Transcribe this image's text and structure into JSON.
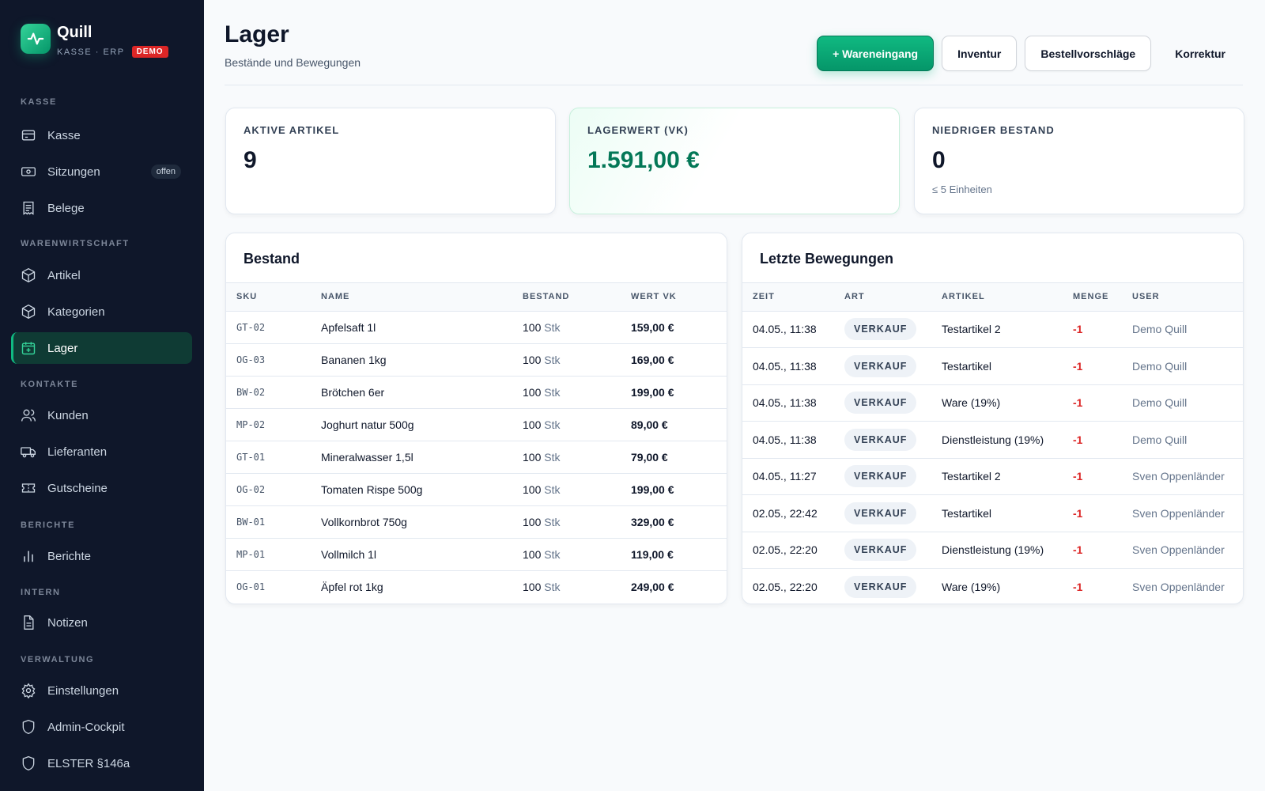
{
  "brand": {
    "name": "Quill",
    "subtitle": "KASSE · ERP",
    "badge": "DEMO"
  },
  "sidebar": {
    "sections": [
      {
        "title": "KASSE",
        "items": [
          {
            "label": "Kasse",
            "icon": "cash-register-icon"
          },
          {
            "label": "Sitzungen",
            "icon": "banknote-icon",
            "badge": "offen"
          },
          {
            "label": "Belege",
            "icon": "receipt-icon"
          }
        ]
      },
      {
        "title": "WARENWIRTSCHAFT",
        "items": [
          {
            "label": "Artikel",
            "icon": "box-icon"
          },
          {
            "label": "Kategorien",
            "icon": "box-icon"
          },
          {
            "label": "Lager",
            "icon": "warehouse-icon",
            "active": true
          }
        ]
      },
      {
        "title": "KONTAKTE",
        "items": [
          {
            "label": "Kunden",
            "icon": "users-icon"
          },
          {
            "label": "Lieferanten",
            "icon": "truck-icon"
          },
          {
            "label": "Gutscheine",
            "icon": "ticket-icon"
          }
        ]
      },
      {
        "title": "BERICHTE",
        "items": [
          {
            "label": "Berichte",
            "icon": "bar-chart-icon"
          }
        ]
      },
      {
        "title": "INTERN",
        "items": [
          {
            "label": "Notizen",
            "icon": "document-icon"
          }
        ]
      },
      {
        "title": "VERWALTUNG",
        "items": [
          {
            "label": "Einstellungen",
            "icon": "gear-icon"
          },
          {
            "label": "Admin-Cockpit",
            "icon": "shield-icon"
          },
          {
            "label": "ELSTER §146a",
            "icon": "shield-icon"
          }
        ]
      }
    ]
  },
  "header": {
    "title": "Lager",
    "subtitle": "Bestände und Bewegungen",
    "actions": {
      "primary": "+ Wareneingang",
      "inventur": "Inventur",
      "bestellvorschlaege": "Bestellvorschläge",
      "korrektur": "Korrektur"
    }
  },
  "stats": {
    "active": {
      "label": "AKTIVE ARTIKEL",
      "value": "9"
    },
    "stock_value": {
      "label": "LAGERWERT (VK)",
      "value": "1.591,00 €"
    },
    "low_stock": {
      "label": "NIEDRIGER BESTAND",
      "value": "0",
      "note": "≤ 5 Einheiten"
    }
  },
  "stock": {
    "title": "Bestand",
    "columns": [
      "SKU",
      "NAME",
      "BESTAND",
      "WERT VK"
    ],
    "rows": [
      {
        "sku": "GT-02",
        "name": "Apfelsaft 1l",
        "qty": "100",
        "unit": "Stk",
        "value": "159,00 €"
      },
      {
        "sku": "OG-03",
        "name": "Bananen 1kg",
        "qty": "100",
        "unit": "Stk",
        "value": "169,00 €"
      },
      {
        "sku": "BW-02",
        "name": "Brötchen 6er",
        "qty": "100",
        "unit": "Stk",
        "value": "199,00 €"
      },
      {
        "sku": "MP-02",
        "name": "Joghurt natur 500g",
        "qty": "100",
        "unit": "Stk",
        "value": "89,00 €"
      },
      {
        "sku": "GT-01",
        "name": "Mineralwasser 1,5l",
        "qty": "100",
        "unit": "Stk",
        "value": "79,00 €"
      },
      {
        "sku": "OG-02",
        "name": "Tomaten Rispe 500g",
        "qty": "100",
        "unit": "Stk",
        "value": "199,00 €"
      },
      {
        "sku": "BW-01",
        "name": "Vollkornbrot 750g",
        "qty": "100",
        "unit": "Stk",
        "value": "329,00 €"
      },
      {
        "sku": "MP-01",
        "name": "Vollmilch 1l",
        "qty": "100",
        "unit": "Stk",
        "value": "119,00 €"
      },
      {
        "sku": "OG-01",
        "name": "Äpfel rot 1kg",
        "qty": "100",
        "unit": "Stk",
        "value": "249,00 €"
      }
    ]
  },
  "movements": {
    "title": "Letzte Bewegungen",
    "columns": [
      "ZEIT",
      "ART",
      "ARTIKEL",
      "MENGE",
      "USER"
    ],
    "rows": [
      {
        "time": "04.05., 11:38",
        "type": "VERKAUF",
        "article": "Testartikel 2",
        "qty": "-1",
        "user": "Demo Quill"
      },
      {
        "time": "04.05., 11:38",
        "type": "VERKAUF",
        "article": "Testartikel",
        "qty": "-1",
        "user": "Demo Quill"
      },
      {
        "time": "04.05., 11:38",
        "type": "VERKAUF",
        "article": "Ware (19%)",
        "qty": "-1",
        "user": "Demo Quill"
      },
      {
        "time": "04.05., 11:38",
        "type": "VERKAUF",
        "article": "Dienstleistung (19%)",
        "qty": "-1",
        "user": "Demo Quill"
      },
      {
        "time": "04.05., 11:27",
        "type": "VERKAUF",
        "article": "Testartikel 2",
        "qty": "-1",
        "user": "Sven Oppenländer"
      },
      {
        "time": "02.05., 22:42",
        "type": "VERKAUF",
        "article": "Testartikel",
        "qty": "-1",
        "user": "Sven Oppenländer"
      },
      {
        "time": "02.05., 22:20",
        "type": "VERKAUF",
        "article": "Dienstleistung (19%)",
        "qty": "-1",
        "user": "Sven Oppenländer"
      },
      {
        "time": "02.05., 22:20",
        "type": "VERKAUF",
        "article": "Ware (19%)",
        "qty": "-1",
        "user": "Sven Oppenländer"
      }
    ]
  },
  "colors": {
    "accent": "#10b981",
    "sidebar_bg": "#0f172a",
    "negative": "#dc2626"
  }
}
